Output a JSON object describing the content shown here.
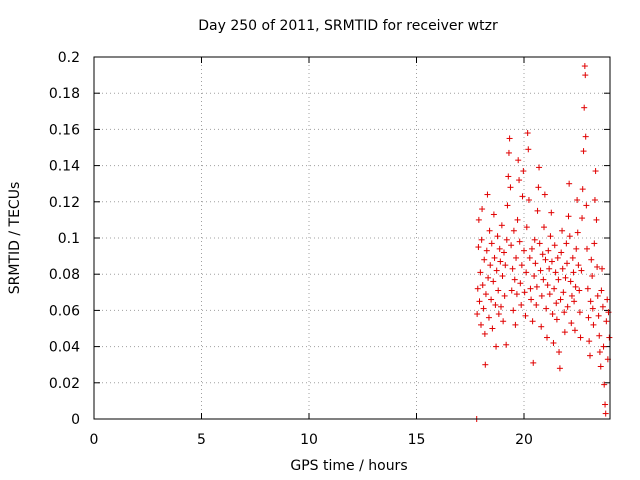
{
  "chart_data": {
    "type": "scatter",
    "title": "Day 250 of 2011, SRMTID for receiver wtzr",
    "xlabel": "GPS time / hours",
    "ylabel": "SRMTID / TECUs",
    "xlim": [
      0,
      24
    ],
    "ylim": [
      0,
      0.2
    ],
    "xticks": [
      0,
      5,
      10,
      15,
      20
    ],
    "xtick_labels": [
      "0",
      "5",
      "10",
      "15",
      "20"
    ],
    "yticks": [
      0,
      0.02,
      0.04,
      0.06,
      0.08,
      0.1,
      0.12,
      0.14,
      0.16,
      0.18,
      0.2
    ],
    "ytick_labels": [
      "0",
      "0.02",
      "0.04",
      "0.06",
      "0.08",
      "0.1",
      "0.12",
      "0.14",
      "0.16",
      "0.18",
      "0.2"
    ],
    "grid": true,
    "marker": "+",
    "marker_color": "#e00000",
    "series": [
      {
        "name": "SRMTID",
        "points": [
          [
            17.8,
            0.0
          ],
          [
            17.82,
            0.058
          ],
          [
            17.85,
            0.072
          ],
          [
            17.88,
            0.095
          ],
          [
            17.9,
            0.11
          ],
          [
            17.93,
            0.065
          ],
          [
            17.97,
            0.081
          ],
          [
            18.0,
            0.052
          ],
          [
            18.03,
            0.099
          ],
          [
            18.05,
            0.116
          ],
          [
            18.08,
            0.074
          ],
          [
            18.12,
            0.061
          ],
          [
            18.15,
            0.088
          ],
          [
            18.18,
            0.047
          ],
          [
            18.2,
            0.03
          ],
          [
            18.23,
            0.069
          ],
          [
            18.27,
            0.093
          ],
          [
            18.3,
            0.124
          ],
          [
            18.33,
            0.078
          ],
          [
            18.37,
            0.056
          ],
          [
            18.4,
            0.104
          ],
          [
            18.43,
            0.085
          ],
          [
            18.47,
            0.066
          ],
          [
            18.5,
            0.097
          ],
          [
            18.53,
            0.05
          ],
          [
            18.57,
            0.076
          ],
          [
            18.6,
            0.113
          ],
          [
            18.63,
            0.089
          ],
          [
            18.67,
            0.063
          ],
          [
            18.7,
            0.04
          ],
          [
            18.73,
            0.082
          ],
          [
            18.77,
            0.101
          ],
          [
            18.8,
            0.071
          ],
          [
            18.83,
            0.058
          ],
          [
            18.87,
            0.094
          ],
          [
            18.9,
            0.087
          ],
          [
            18.93,
            0.062
          ],
          [
            18.97,
            0.107
          ],
          [
            19.0,
            0.079
          ],
          [
            19.03,
            0.054
          ],
          [
            19.07,
            0.092
          ],
          [
            19.1,
            0.068
          ],
          [
            19.13,
            0.085
          ],
          [
            19.17,
            0.041
          ],
          [
            19.2,
            0.099
          ],
          [
            19.23,
            0.118
          ],
          [
            19.27,
            0.134
          ],
          [
            19.3,
            0.147
          ],
          [
            19.33,
            0.155
          ],
          [
            19.37,
            0.128
          ],
          [
            19.4,
            0.096
          ],
          [
            19.43,
            0.071
          ],
          [
            19.47,
            0.083
          ],
          [
            19.5,
            0.06
          ],
          [
            19.53,
            0.104
          ],
          [
            19.57,
            0.077
          ],
          [
            19.6,
            0.052
          ],
          [
            19.63,
            0.089
          ],
          [
            19.67,
            0.069
          ],
          [
            19.7,
            0.11
          ],
          [
            19.73,
            0.143
          ],
          [
            19.77,
            0.132
          ],
          [
            19.8,
            0.098
          ],
          [
            19.83,
            0.075
          ],
          [
            19.87,
            0.063
          ],
          [
            19.9,
            0.085
          ],
          [
            19.93,
            0.123
          ],
          [
            19.97,
            0.137
          ],
          [
            20.0,
            0.093
          ],
          [
            20.03,
            0.07
          ],
          [
            20.07,
            0.057
          ],
          [
            20.1,
            0.081
          ],
          [
            20.13,
            0.106
          ],
          [
            20.17,
            0.158
          ],
          [
            20.2,
            0.149
          ],
          [
            20.23,
            0.121
          ],
          [
            20.27,
            0.089
          ],
          [
            20.3,
            0.072
          ],
          [
            20.33,
            0.066
          ],
          [
            20.37,
            0.094
          ],
          [
            20.4,
            0.054
          ],
          [
            20.43,
            0.031
          ],
          [
            20.47,
            0.079
          ],
          [
            20.5,
            0.099
          ],
          [
            20.53,
            0.086
          ],
          [
            20.57,
            0.063
          ],
          [
            20.6,
            0.073
          ],
          [
            20.63,
            0.115
          ],
          [
            20.67,
            0.128
          ],
          [
            20.7,
            0.139
          ],
          [
            20.73,
            0.097
          ],
          [
            20.77,
            0.082
          ],
          [
            20.8,
            0.051
          ],
          [
            20.83,
            0.068
          ],
          [
            20.87,
            0.091
          ],
          [
            20.9,
            0.077
          ],
          [
            20.93,
            0.106
          ],
          [
            20.97,
            0.124
          ],
          [
            21.0,
            0.088
          ],
          [
            21.03,
            0.061
          ],
          [
            21.07,
            0.045
          ],
          [
            21.1,
            0.074
          ],
          [
            21.13,
            0.093
          ],
          [
            21.17,
            0.083
          ],
          [
            21.2,
            0.069
          ],
          [
            21.23,
            0.101
          ],
          [
            21.27,
            0.114
          ],
          [
            21.3,
            0.087
          ],
          [
            21.33,
            0.058
          ],
          [
            21.37,
            0.042
          ],
          [
            21.4,
            0.072
          ],
          [
            21.43,
            0.096
          ],
          [
            21.47,
            0.081
          ],
          [
            21.5,
            0.064
          ],
          [
            21.53,
            0.055
          ],
          [
            21.57,
            0.089
          ],
          [
            21.6,
            0.077
          ],
          [
            21.63,
            0.037
          ],
          [
            21.67,
            0.028
          ],
          [
            21.7,
            0.066
          ],
          [
            21.73,
            0.092
          ],
          [
            21.77,
            0.104
          ],
          [
            21.8,
            0.083
          ],
          [
            21.83,
            0.07
          ],
          [
            21.87,
            0.059
          ],
          [
            21.9,
            0.048
          ],
          [
            21.93,
            0.078
          ],
          [
            21.97,
            0.097
          ],
          [
            22.0,
            0.086
          ],
          [
            22.03,
            0.062
          ],
          [
            22.07,
            0.112
          ],
          [
            22.1,
            0.13
          ],
          [
            22.13,
            0.101
          ],
          [
            22.17,
            0.076
          ],
          [
            22.2,
            0.053
          ],
          [
            22.23,
            0.068
          ],
          [
            22.27,
            0.089
          ],
          [
            22.3,
            0.081
          ],
          [
            22.33,
            0.065
          ],
          [
            22.37,
            0.049
          ],
          [
            22.4,
            0.073
          ],
          [
            22.43,
            0.094
          ],
          [
            22.47,
            0.121
          ],
          [
            22.5,
            0.103
          ],
          [
            22.53,
            0.085
          ],
          [
            22.57,
            0.071
          ],
          [
            22.6,
            0.059
          ],
          [
            22.63,
            0.045
          ],
          [
            22.67,
            0.082
          ],
          [
            22.7,
            0.111
          ],
          [
            22.73,
            0.127
          ],
          [
            22.77,
            0.148
          ],
          [
            22.8,
            0.172
          ],
          [
            22.83,
            0.195
          ],
          [
            22.85,
            0.19
          ],
          [
            22.87,
            0.156
          ],
          [
            22.9,
            0.118
          ],
          [
            22.93,
            0.094
          ],
          [
            22.97,
            0.072
          ],
          [
            23.0,
            0.056
          ],
          [
            23.03,
            0.043
          ],
          [
            23.07,
            0.035
          ],
          [
            23.1,
            0.065
          ],
          [
            23.13,
            0.088
          ],
          [
            23.17,
            0.079
          ],
          [
            23.2,
            0.061
          ],
          [
            23.23,
            0.052
          ],
          [
            23.27,
            0.097
          ],
          [
            23.3,
            0.121
          ],
          [
            23.33,
            0.137
          ],
          [
            23.37,
            0.11
          ],
          [
            23.4,
            0.084
          ],
          [
            23.43,
            0.068
          ],
          [
            23.47,
            0.057
          ],
          [
            23.5,
            0.046
          ],
          [
            23.53,
            0.037
          ],
          [
            23.57,
            0.029
          ],
          [
            23.6,
            0.071
          ],
          [
            23.63,
            0.083
          ],
          [
            23.67,
            0.062
          ],
          [
            23.7,
            0.04
          ],
          [
            23.73,
            0.019
          ],
          [
            23.77,
            0.008
          ],
          [
            23.8,
            0.003
          ],
          [
            23.83,
            0.054
          ],
          [
            23.87,
            0.066
          ],
          [
            23.9,
            0.033
          ],
          [
            23.93,
            0.059
          ],
          [
            23.97,
            0.045
          ]
        ]
      }
    ]
  }
}
